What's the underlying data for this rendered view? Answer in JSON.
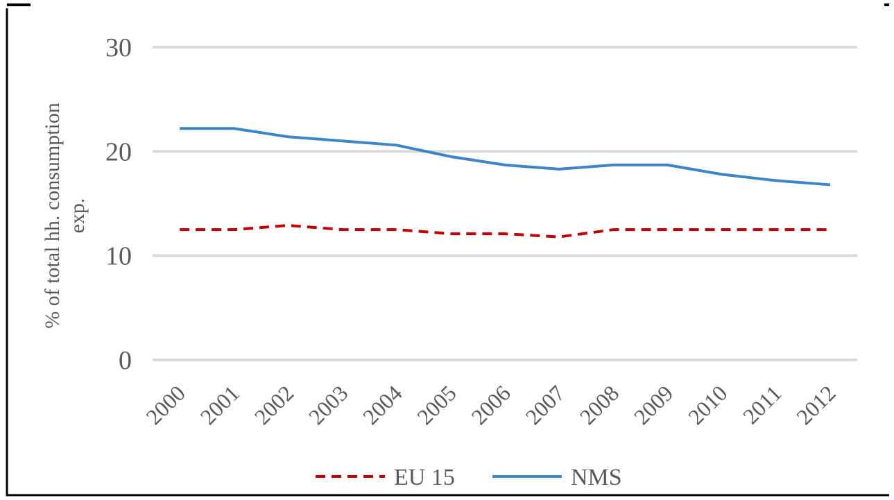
{
  "chart_data": {
    "type": "line",
    "y_label": "% of total hh. consumption exp.",
    "categories": [
      "2000",
      "2001",
      "2002",
      "2003",
      "2004",
      "2005",
      "2006",
      "2007",
      "2008",
      "2009",
      "2010",
      "2011",
      "2012"
    ],
    "series": [
      {
        "name": "EU 15",
        "color": "#c00000",
        "dashed": true,
        "values": [
          12.5,
          12.5,
          12.9,
          12.5,
          12.5,
          12.1,
          12.1,
          11.8,
          12.5,
          12.5,
          12.5,
          12.5,
          12.5
        ]
      },
      {
        "name": "NMS",
        "color": "#3d85c6",
        "dashed": false,
        "values": [
          22.2,
          22.2,
          21.4,
          21.0,
          20.6,
          19.5,
          18.7,
          18.3,
          18.7,
          18.7,
          17.8,
          17.2,
          16.8
        ]
      }
    ],
    "ylim": [
      0,
      30
    ],
    "yticks": [
      0,
      10,
      20,
      30
    ],
    "grid": true,
    "legend": "bottom"
  }
}
